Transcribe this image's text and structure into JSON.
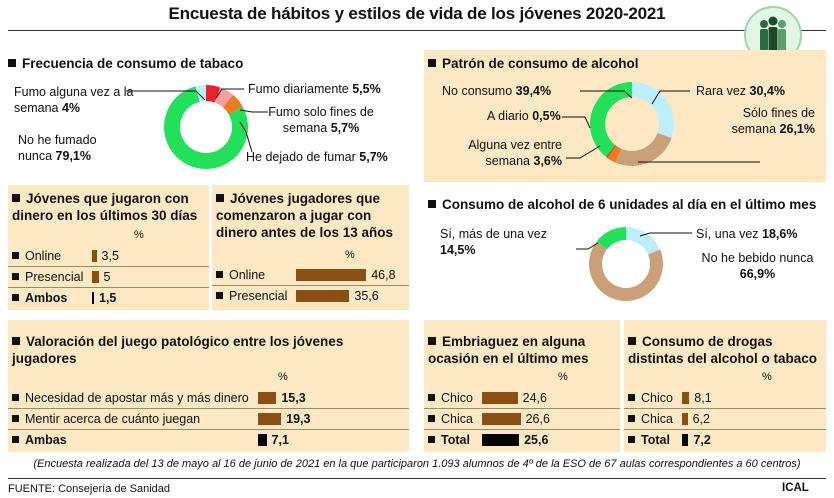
{
  "title": "Encuesta de hábitos y estilos de vida de los jóvenes 2020-2021",
  "footnote": "(Encuesta realizada del 13 de mayo al 16 de junio de 2021 en la que participaron 1.093 alumnos de 4º de la ESO de 67 aulas correspondientes a 60 centros)",
  "source": "FUENTE: Consejería de Sanidad",
  "agency": "ICAL",
  "pct_unit": "%",
  "colors": {
    "green": "#22e05a",
    "red": "#e8222a",
    "orange": "#ee7a22",
    "pink": "#f4a0a0",
    "lightblue": "#bdeefb",
    "tan": "#c9a07a",
    "bar": "#8b4f14",
    "panel": "#fde8c4"
  },
  "chart_data": [
    {
      "type": "pie",
      "title": "Frecuencia de consumo de tabaco",
      "slices": [
        {
          "label": "Fumo diariamente",
          "value": 5.5,
          "value_text": "5,5%",
          "color": "#e8222a"
        },
        {
          "label": "Fumo solo fines de semana",
          "value": 5.7,
          "value_text": "5,7%",
          "color": "#f4a0a0"
        },
        {
          "label": "He dejado de fumar",
          "value": 5.7,
          "value_text": "5,7%",
          "color": "#ee7a22"
        },
        {
          "label": "No he fumado nunca",
          "value": 79.1,
          "value_text": "79,1%",
          "color": "#22e05a"
        },
        {
          "label": "Fumo alguna vez a la semana",
          "value": 4,
          "value_text": "4%",
          "color": "#bdeefb"
        }
      ]
    },
    {
      "type": "pie",
      "title": "Patrón de consumo de alcohol",
      "slices": [
        {
          "label": "Rara vez",
          "value": 30.4,
          "value_text": "30,4%",
          "color": "#bdeefb"
        },
        {
          "label": "Sólo fines de semana",
          "value": 26.1,
          "value_text": "26,1%",
          "color": "#c9a07a"
        },
        {
          "label": "Alguna vez entre semana",
          "value": 3.6,
          "value_text": "3,6%",
          "color": "#ee7a22"
        },
        {
          "label": "A diario",
          "value": 0.5,
          "value_text": "0,5%",
          "color": "#e8222a"
        },
        {
          "label": "No consumo",
          "value": 39.4,
          "value_text": "39,4%",
          "color": "#22e05a"
        }
      ]
    },
    {
      "type": "pie",
      "title": "Consumo de alcohol de 6 unidades al día en el último mes",
      "slices": [
        {
          "label": "Sí, una vez",
          "value": 18.6,
          "value_text": "18,6%",
          "color": "#bdeefb"
        },
        {
          "label": "No he bebido nunca",
          "value": 66.9,
          "value_text": "66,9%",
          "color": "#c9a07a"
        },
        {
          "label": "Sí, más de una vez",
          "value": 14.5,
          "value_text": "14,5%",
          "color": "#22e05a"
        }
      ]
    },
    {
      "type": "bar",
      "title": "Jóvenes que jugaron con dinero en los últimos 30 días",
      "categories": [
        "Online",
        "Presencial",
        "Ambos"
      ],
      "values": [
        3.5,
        5,
        1.5
      ],
      "value_text": [
        "3,5",
        "5",
        "1,5"
      ],
      "ylabel": "%"
    },
    {
      "type": "bar",
      "title": "Jóvenes jugadores que comenzaron a jugar con dinero antes de los 13 años",
      "categories": [
        "Online",
        "Presencial"
      ],
      "values": [
        46.8,
        35.6
      ],
      "value_text": [
        "46,8",
        "35,6"
      ],
      "ylabel": "%"
    },
    {
      "type": "bar",
      "title": "Valoración del juego patológico entre los jóvenes jugadores",
      "categories": [
        "Necesidad de apostar más y más dinero",
        "Mentir acerca de cuánto juegan",
        "Ambas"
      ],
      "values": [
        15.3,
        19.3,
        7.1
      ],
      "value_text": [
        "15,3",
        "19,3",
        "7,1"
      ],
      "ylabel": "%"
    },
    {
      "type": "bar",
      "title": "Embriaguez en alguna ocasión en el último mes",
      "categories": [
        "Chico",
        "Chica",
        "Total"
      ],
      "values": [
        24.6,
        26.6,
        25.6
      ],
      "value_text": [
        "24,6",
        "26,6",
        "25,6"
      ],
      "ylabel": "%"
    },
    {
      "type": "bar",
      "title": "Consumo de drogas distintas del alcohol o tabaco",
      "categories": [
        "Chico",
        "Chica",
        "Total"
      ],
      "values": [
        8.1,
        6.2,
        7.2
      ],
      "value_text": [
        "8,1",
        "6,2",
        "7,2"
      ],
      "ylabel": "%"
    }
  ]
}
